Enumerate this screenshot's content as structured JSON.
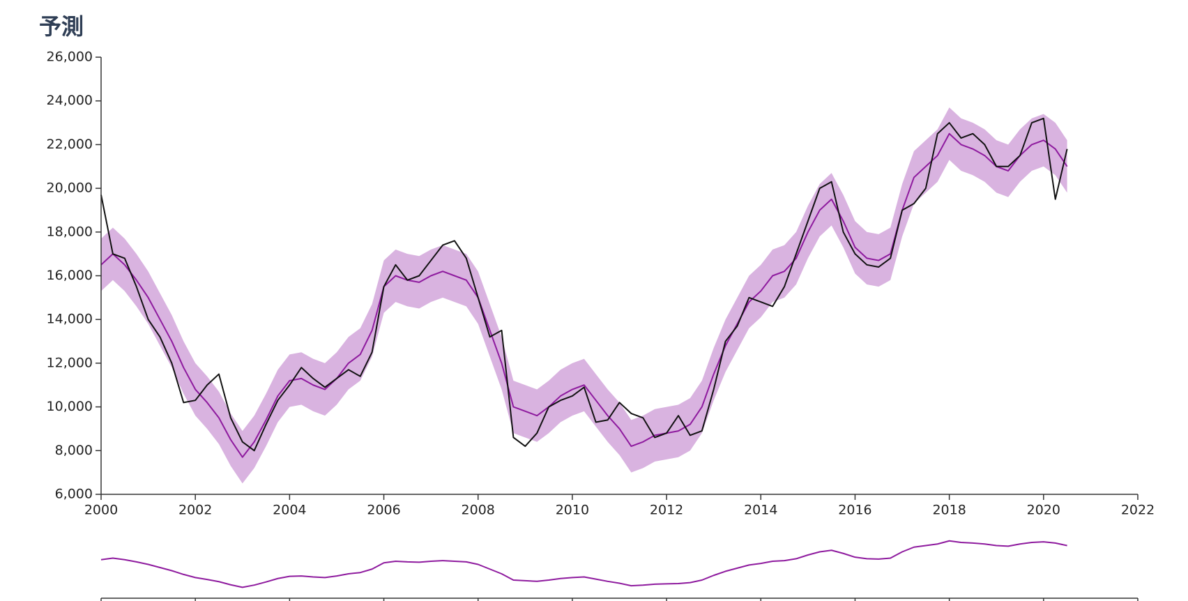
{
  "chart_data": {
    "type": "line",
    "title": "予測",
    "x": [
      2000,
      2000.25,
      2000.5,
      2000.75,
      2001,
      2001.25,
      2001.5,
      2001.75,
      2002,
      2002.25,
      2002.5,
      2002.75,
      2003,
      2003.25,
      2003.5,
      2003.75,
      2004,
      2004.25,
      2004.5,
      2004.75,
      2005,
      2005.25,
      2005.5,
      2005.75,
      2006,
      2006.25,
      2006.5,
      2006.75,
      2007,
      2007.25,
      2007.5,
      2007.75,
      2008,
      2008.25,
      2008.5,
      2008.75,
      2009,
      2009.25,
      2009.5,
      2009.75,
      2010,
      2010.25,
      2010.5,
      2010.75,
      2011,
      2011.25,
      2011.5,
      2011.75,
      2012,
      2012.25,
      2012.5,
      2012.75,
      2013,
      2013.25,
      2013.5,
      2013.75,
      2014,
      2014.25,
      2014.5,
      2014.75,
      2015,
      2015.25,
      2015.5,
      2015.75,
      2016,
      2016.25,
      2016.5,
      2016.75,
      2017,
      2017.25,
      2017.5,
      2017.75,
      2018,
      2018.25,
      2018.5,
      2018.75,
      2019,
      2019.25,
      2019.5,
      2019.75,
      2020,
      2020.25,
      2020.5
    ],
    "band": {
      "color": "#d9b3e0",
      "lower": [
        15300,
        15800,
        15300,
        14600,
        13800,
        12800,
        11800,
        10600,
        9600,
        9000,
        8300,
        7300,
        6500,
        7200,
        8200,
        9300,
        10000,
        10100,
        9800,
        9600,
        10100,
        10800,
        11200,
        12300,
        14300,
        14800,
        14600,
        14500,
        14800,
        15000,
        14800,
        14600,
        13800,
        12300,
        10800,
        8800,
        8600,
        8400,
        8800,
        9300,
        9600,
        9800,
        9100,
        8400,
        7800,
        7000,
        7200,
        7500,
        7600,
        7700,
        8000,
        8800,
        10300,
        11600,
        12600,
        13600,
        14100,
        14800,
        15000,
        15600,
        16800,
        17800,
        18300,
        17300,
        16100,
        15600,
        15500,
        15800,
        17800,
        19300,
        19800,
        20300,
        21300,
        20800,
        20600,
        20300,
        19800,
        19600,
        20300,
        20800,
        21000,
        20600,
        19800
      ],
      "upper": [
        17700,
        18200,
        17700,
        17000,
        16200,
        15200,
        14200,
        13000,
        12000,
        11400,
        10700,
        9700,
        8900,
        9600,
        10600,
        11700,
        12400,
        12500,
        12200,
        12000,
        12500,
        13200,
        13600,
        14700,
        16700,
        17200,
        17000,
        16900,
        17200,
        17400,
        17200,
        17000,
        16200,
        14700,
        13200,
        11200,
        11000,
        10800,
        11200,
        11700,
        12000,
        12200,
        11500,
        10800,
        10200,
        9400,
        9600,
        9900,
        10000,
        10100,
        10400,
        11200,
        12700,
        14000,
        15000,
        16000,
        16500,
        17200,
        17400,
        18000,
        19200,
        20200,
        20700,
        19700,
        18500,
        18000,
        17900,
        18200,
        20200,
        21700,
        22200,
        22700,
        23700,
        23200,
        23000,
        22700,
        22200,
        22000,
        22700,
        23200,
        23400,
        23000,
        22200
      ]
    },
    "series": [
      {
        "color": "#111111",
        "values": [
          19700,
          17000,
          16800,
          15500,
          14000,
          13200,
          12000,
          10200,
          10300,
          11000,
          11500,
          9500,
          8400,
          8000,
          9200,
          10300,
          11000,
          11800,
          11300,
          10900,
          11300,
          11700,
          11400,
          12500,
          15500,
          16500,
          15800,
          16000,
          16700,
          17400,
          17600,
          16800,
          15000,
          13200,
          13500,
          8600,
          8200,
          8800,
          10000,
          10300,
          10500,
          10900,
          9300,
          9400,
          10200,
          9700,
          9500,
          8600,
          8800,
          9600,
          8700,
          8900,
          10800,
          13000,
          13700,
          15000,
          14800,
          14600,
          15500,
          17000,
          18500,
          20000,
          20300,
          18000,
          17000,
          16500,
          16400,
          16800,
          19000,
          19300,
          20000,
          22500,
          23000,
          22300,
          22500,
          22000,
          21000,
          21000,
          21500,
          23000,
          23200,
          19500,
          21800
        ]
      },
      {
        "color": "#8e1a9e",
        "values": [
          16500,
          17000,
          16500,
          15800,
          15000,
          14000,
          13000,
          11800,
          10800,
          10200,
          9500,
          8500,
          7700,
          8400,
          9400,
          10500,
          11200,
          11300,
          11000,
          10800,
          11300,
          12000,
          12400,
          13500,
          15500,
          16000,
          15800,
          15700,
          16000,
          16200,
          16000,
          15800,
          15000,
          13500,
          12000,
          10000,
          9800,
          9600,
          10000,
          10500,
          10800,
          11000,
          10300,
          9600,
          9000,
          8200,
          8400,
          8700,
          8800,
          8900,
          9200,
          10000,
          11500,
          12800,
          13800,
          14800,
          15300,
          16000,
          16200,
          16800,
          18000,
          19000,
          19500,
          18500,
          17300,
          16800,
          16700,
          17000,
          19000,
          20500,
          21000,
          21500,
          22500,
          22000,
          21800,
          21500,
          21000,
          20800,
          21500,
          22000,
          22200,
          21800,
          21000
        ]
      }
    ],
    "xlim": [
      2000,
      2022
    ],
    "xticks": [
      2000,
      2002,
      2004,
      2006,
      2008,
      2010,
      2012,
      2014,
      2016,
      2018,
      2020,
      2022
    ],
    "ylim": [
      6000,
      26000
    ],
    "yticks": [
      {
        "value": 6000,
        "label": "6,000"
      },
      {
        "value": 8000,
        "label": "8,000"
      },
      {
        "value": 10000,
        "label": "10,000"
      },
      {
        "value": 12000,
        "label": "12,000"
      },
      {
        "value": 14000,
        "label": "14,000"
      },
      {
        "value": 16000,
        "label": "16,000"
      },
      {
        "value": 18000,
        "label": "18,000"
      },
      {
        "value": 20000,
        "label": "20,000"
      },
      {
        "value": 22000,
        "label": "22,000"
      },
      {
        "value": 24000,
        "label": "24,000"
      },
      {
        "value": 26000,
        "label": "26,000"
      }
    ]
  }
}
